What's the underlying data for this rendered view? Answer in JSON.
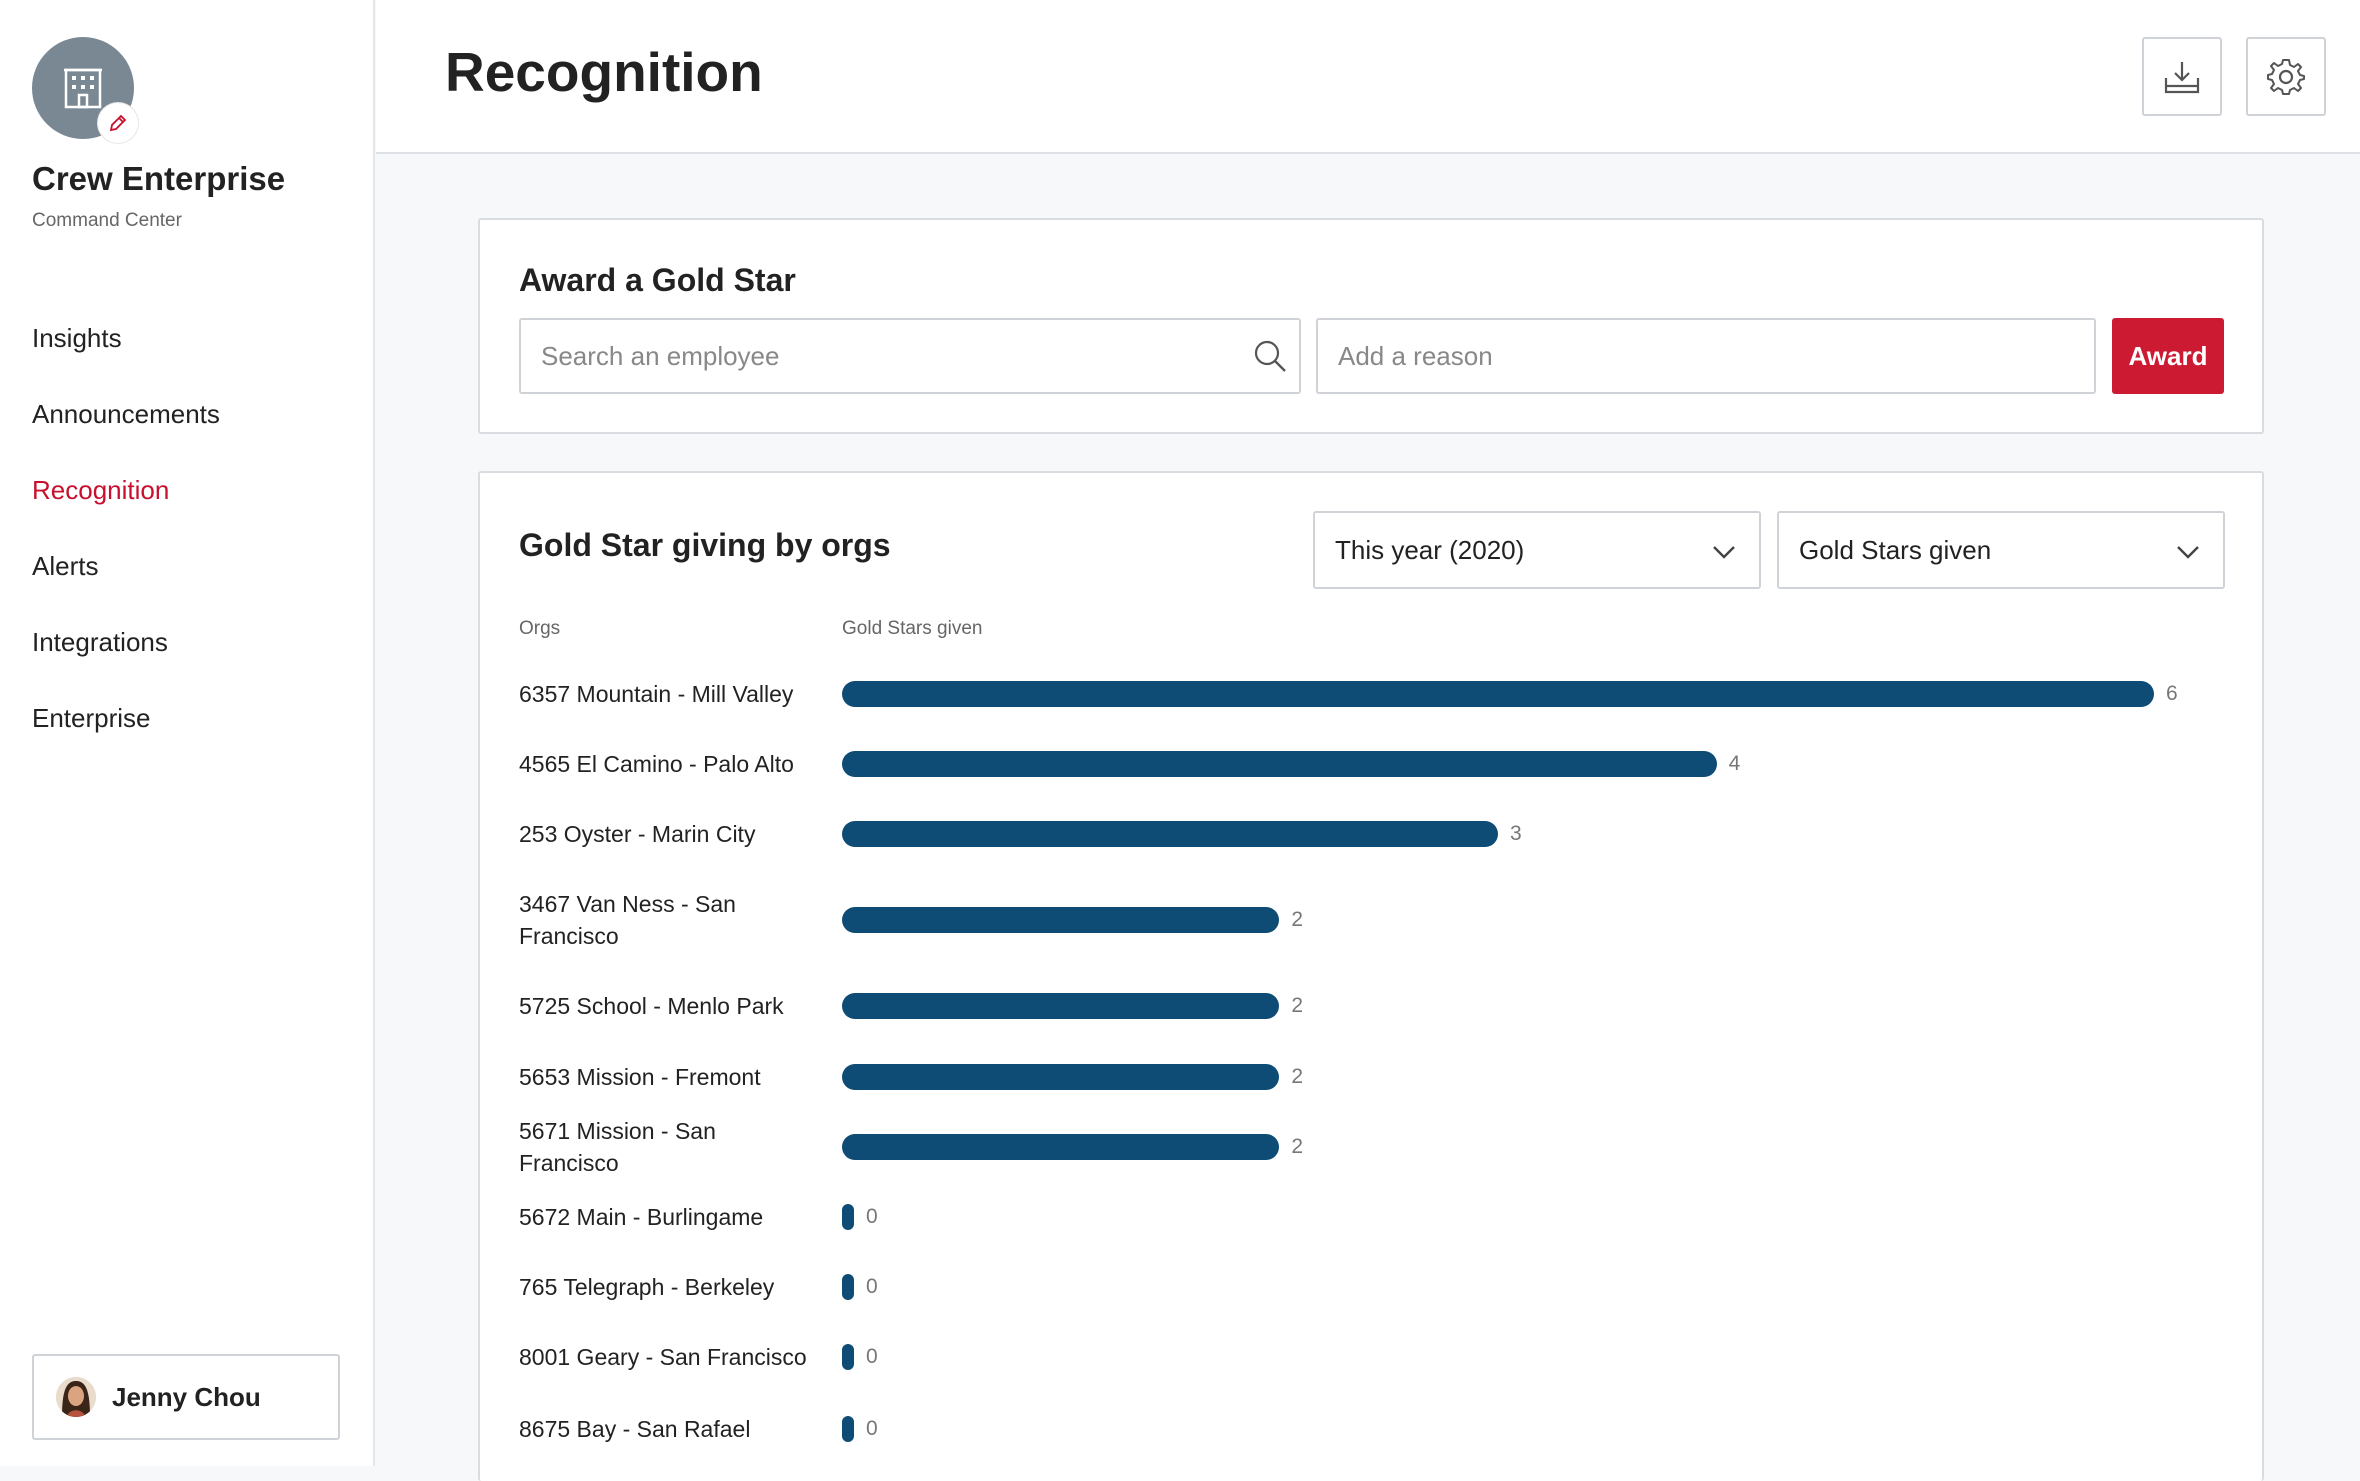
{
  "sidebar": {
    "org_name": "Crew Enterprise",
    "org_subtitle": "Command Center",
    "nav": [
      "Insights",
      "Announcements",
      "Recognition",
      "Alerts",
      "Integrations",
      "Enterprise"
    ],
    "active_nav": "Recognition",
    "user_name": "Jenny Chou"
  },
  "header": {
    "title": "Recognition",
    "download_icon": "download-icon",
    "settings_icon": "gear-icon"
  },
  "award_card": {
    "title": "Award a Gold Star",
    "search_placeholder": "Search an employee",
    "reason_placeholder": "Add a reason",
    "award_label": "Award"
  },
  "giving_card": {
    "title": "Gold Star giving by orgs",
    "period_select": "This year (2020)",
    "metric_select": "Gold Stars given",
    "col_orgs": "Orgs",
    "col_metric": "Gold Stars given"
  },
  "colors": {
    "accent": "#c8102e",
    "bar": "#0f4c75",
    "award_button": "#cc1a33"
  },
  "chart_data": {
    "type": "bar",
    "orientation": "horizontal",
    "categories": [
      "6357 Mountain - Mill Valley",
      "4565 El Camino - Palo Alto",
      "253 Oyster - Marin City",
      "3467 Van Ness - San Francisco",
      "5725 School - Menlo Park",
      "5653 Mission - Fremont",
      "5671 Mission - San Francisco",
      "5672 Main - Burlingame",
      "765 Telegraph - Berkeley",
      "8001 Geary - San Francisco",
      "8675 Bay - San Rafael"
    ],
    "values": [
      6,
      4,
      3,
      2,
      2,
      2,
      2,
      0,
      0,
      0,
      0
    ],
    "value_labels": [
      "6",
      "4",
      "3",
      "2",
      "2",
      "2",
      "2",
      "0",
      "0",
      "0",
      "0"
    ],
    "xlabel": "Gold Stars given",
    "ylabel": "Orgs",
    "xlim": [
      0,
      6
    ]
  }
}
